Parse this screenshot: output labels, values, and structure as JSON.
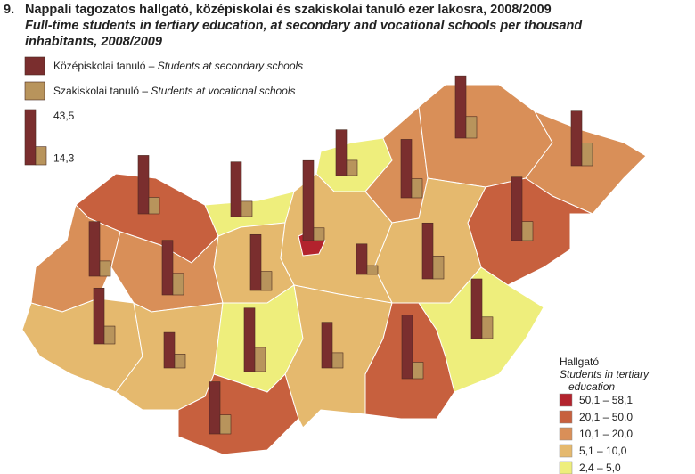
{
  "chart_data": {
    "type": "map",
    "number": "9.",
    "title": "Nappali tagozatos hallgató, középiskolai és szakiskolai tanuló ezer lakosra, 2008/2009",
    "subtitle": "Full-time students in tertiary education, at secondary and vocational schools per thousand inhabitants, 2008/2009",
    "series": [
      {
        "name": "Középiskolai tanuló – ",
        "name_en": "Students at secondary schools",
        "color": "#7a2e2e"
      },
      {
        "name": "Szakiskolai tanuló – ",
        "name_en": "Students at vocational schools",
        "color": "#b8945c"
      }
    ],
    "reference": {
      "values": [
        43.5,
        14.3
      ],
      "value_labels": [
        "43,5",
        "14,3"
      ]
    },
    "legend_title": "Hallgató",
    "legend_subtitle": "Students in tertiary education",
    "classes": [
      {
        "label": "50,1 – 58,1",
        "color": "#b3232d"
      },
      {
        "label": "20,1 – 50,0",
        "color": "#c7603e"
      },
      {
        "label": "10,1 – 20,0",
        "color": "#d98f58"
      },
      {
        "label": "5,1 – 10,0",
        "color": "#e5b96e"
      },
      {
        "label": "2,4 – 5,0",
        "color": "#eeee7c"
      }
    ],
    "regions": [
      {
        "secondary": 46,
        "vocational": 13,
        "class": 1
      },
      {
        "secondary": 43,
        "vocational": 12,
        "class": 4
      },
      {
        "secondary": 63,
        "vocational": 10,
        "class": 0
      },
      {
        "secondary": 36,
        "vocational": 12,
        "class": 4
      },
      {
        "secondary": 46,
        "vocational": 15,
        "class": 2
      },
      {
        "secondary": 49,
        "vocational": 17,
        "class": 2
      },
      {
        "secondary": 43,
        "vocational": 18,
        "class": 2
      },
      {
        "secondary": 50,
        "vocational": 15,
        "class": 1
      },
      {
        "secondary": 44,
        "vocational": 18,
        "class": 3
      },
      {
        "secondary": 43,
        "vocational": 12,
        "class": 2
      },
      {
        "secondary": 43,
        "vocational": 17,
        "class": 2
      },
      {
        "secondary": 44,
        "vocational": 15,
        "class": 3
      },
      {
        "secondary": 24,
        "vocational": 7,
        "class": 3
      },
      {
        "secondary": 44,
        "vocational": 14,
        "class": 3
      },
      {
        "secondary": 28,
        "vocational": 11,
        "class": 3
      },
      {
        "secondary": 50,
        "vocational": 19,
        "class": 4
      },
      {
        "secondary": 36,
        "vocational": 12,
        "class": 3
      },
      {
        "secondary": 50,
        "vocational": 13,
        "class": 1
      },
      {
        "secondary": 47,
        "vocational": 17,
        "class": 4
      },
      {
        "secondary": 41,
        "vocational": 15,
        "class": 1
      }
    ]
  }
}
